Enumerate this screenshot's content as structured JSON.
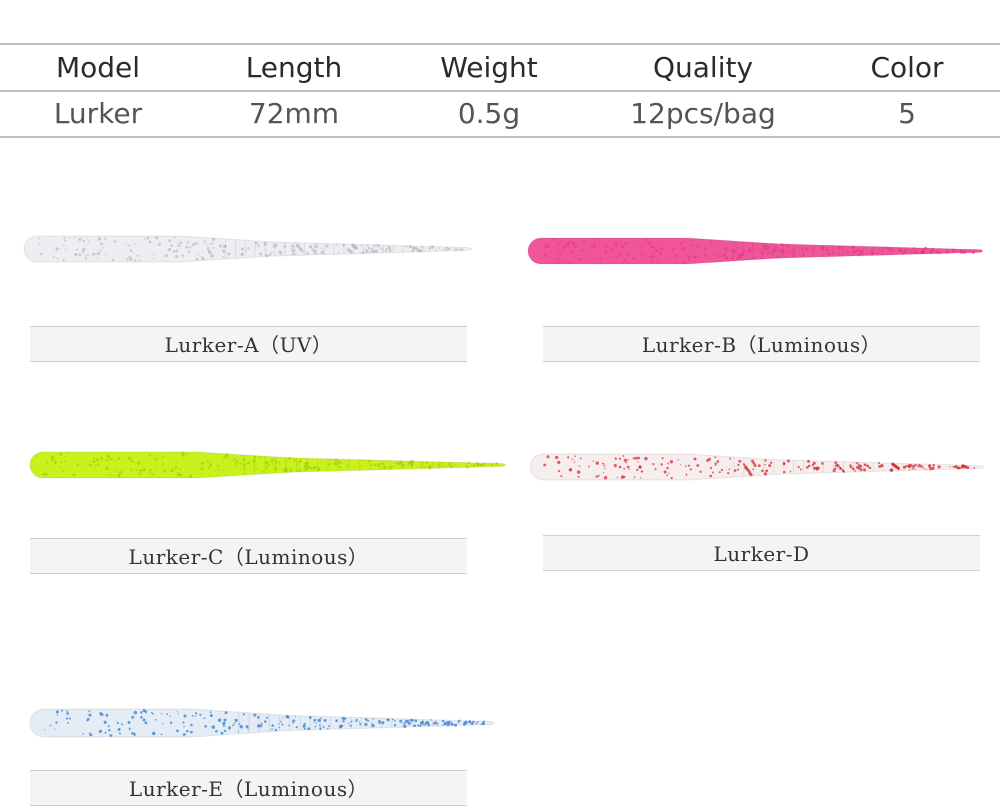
{
  "specs": {
    "headers": [
      "Model",
      "Length",
      "Weight",
      "Quality",
      "Color"
    ],
    "values": [
      "Lurker",
      "72mm",
      "0.5g",
      "12pcs/bag",
      "5"
    ]
  },
  "variants": [
    {
      "label": "Lurker-A（UV）",
      "color": "#eceef2",
      "speckle": "#b9bcc4"
    },
    {
      "label": "Lurker-B（Luminous）",
      "color": "#f0559a",
      "speckle": "#e23d86"
    },
    {
      "label": "Lurker-C（Luminous）",
      "color": "#c9f21c",
      "speckle": "#a6cf10"
    },
    {
      "label": "Lurker-D",
      "color": "#f6eeee",
      "speckle": "#d8292e"
    },
    {
      "label": "Lurker-E（Luminous）",
      "color": "#e4ecf6",
      "speckle": "#2f7fd0"
    }
  ]
}
